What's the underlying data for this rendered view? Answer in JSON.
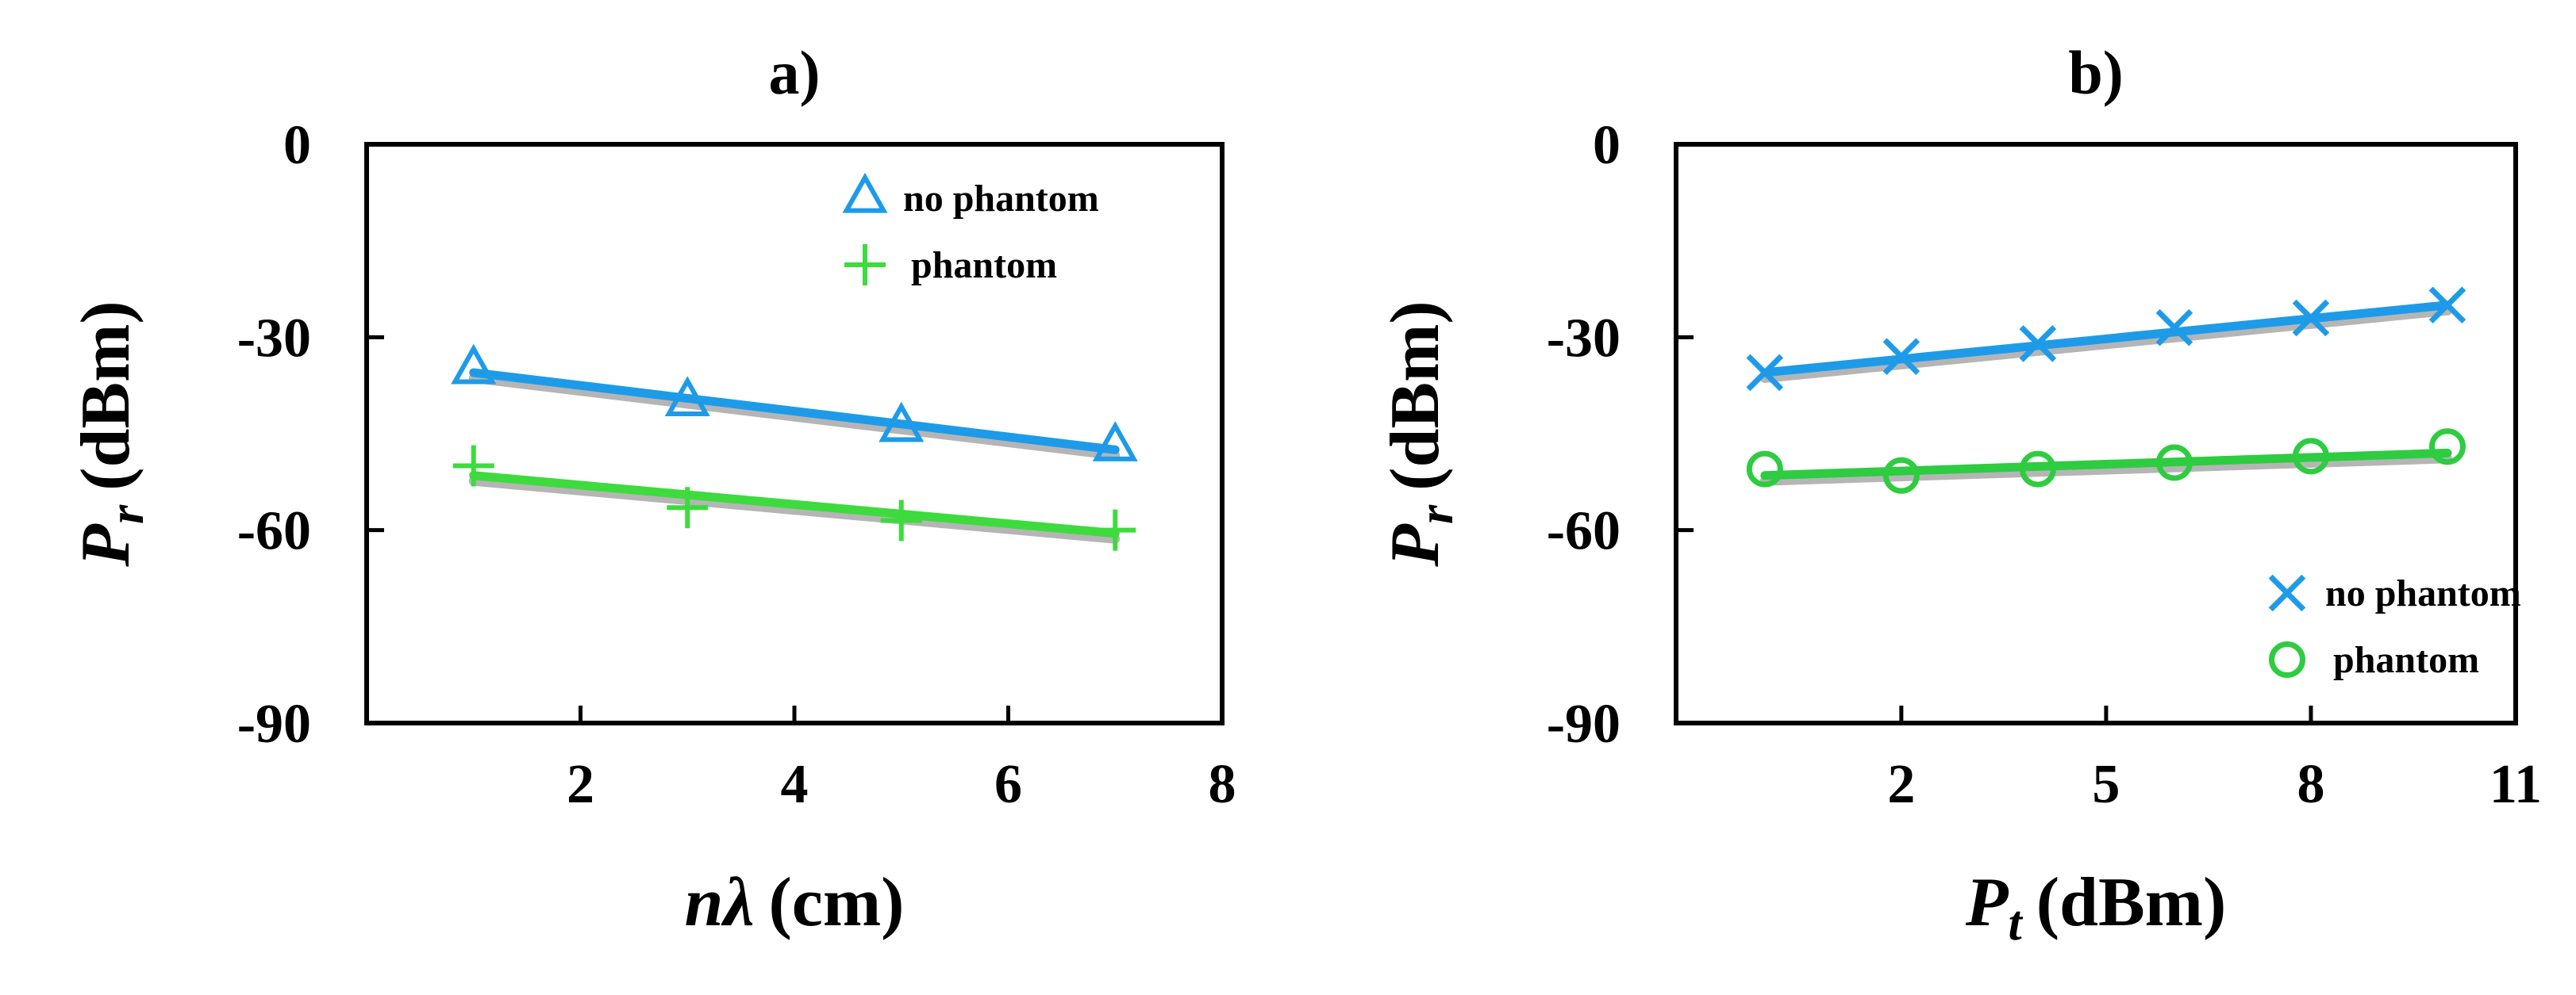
{
  "chart_data": [
    {
      "type": "scatter",
      "panel": "a)",
      "title": "a)",
      "xlabel": {
        "symbol": "nλ",
        "unit": "(cm)"
      },
      "ylabel": {
        "symbol": "P",
        "subscript": "r",
        "unit": "(dBm)"
      },
      "xlim": [
        0,
        8
      ],
      "ylim": [
        -90,
        0
      ],
      "x_ticks": [
        "2",
        "4",
        "6",
        "8"
      ],
      "x_tick_values": [
        2,
        4,
        6,
        8
      ],
      "y_ticks": [
        "0",
        "-30",
        "-60",
        "-90"
      ],
      "y_tick_values": [
        0,
        -30,
        -60,
        -90
      ],
      "legend_position": "top-right",
      "series": [
        {
          "name": "no phantom",
          "marker": "triangle",
          "color": "#1E9BE8",
          "x": [
            1,
            3,
            5,
            7
          ],
          "y": [
            -35,
            -40,
            -44,
            -47
          ],
          "fit": {
            "x": [
              1,
              7
            ],
            "y": [
              -35.5,
              -47.5
            ]
          }
        },
        {
          "name": "phantom",
          "marker": "plus",
          "color": "#3DDB3D",
          "x": [
            1,
            3,
            5,
            7
          ],
          "y": [
            -50,
            -56.5,
            -58.5,
            -60
          ],
          "fit": {
            "x": [
              1,
              7
            ],
            "y": [
              -51.5,
              -60.5
            ]
          }
        }
      ]
    },
    {
      "type": "scatter",
      "panel": "b)",
      "title": "b)",
      "xlabel": {
        "symbol": "P",
        "subscript": "t",
        "unit": "(dBm)"
      },
      "ylabel": {
        "symbol": "P",
        "subscript": "r",
        "unit": "(dBm)"
      },
      "xlim": [
        -1.3,
        11
      ],
      "ylim": [
        -90,
        0
      ],
      "x_ticks": [
        "2",
        "5",
        "8",
        "11"
      ],
      "x_tick_values": [
        2,
        5,
        8,
        11
      ],
      "y_ticks": [
        "0",
        "-30",
        "-60",
        "-90"
      ],
      "y_tick_values": [
        0,
        -30,
        -60,
        -90
      ],
      "legend_position": "bottom-right",
      "series": [
        {
          "name": "no phantom",
          "marker": "cross",
          "color": "#1E9BE8",
          "x": [
            0,
            2,
            4,
            6,
            8,
            10
          ],
          "y": [
            -35.5,
            -33,
            -31,
            -28.5,
            -27,
            -25
          ],
          "fit": {
            "x": [
              0,
              10
            ],
            "y": [
              -35.5,
              -25
            ]
          }
        },
        {
          "name": "phantom",
          "marker": "circle",
          "color": "#2ECC40",
          "x": [
            0,
            2,
            4,
            6,
            8,
            10
          ],
          "y": [
            -50.5,
            -51.5,
            -50.5,
            -49.5,
            -48.5,
            -47
          ],
          "fit": {
            "x": [
              0,
              10
            ],
            "y": [
              -51.5,
              -48
            ]
          }
        }
      ]
    }
  ]
}
